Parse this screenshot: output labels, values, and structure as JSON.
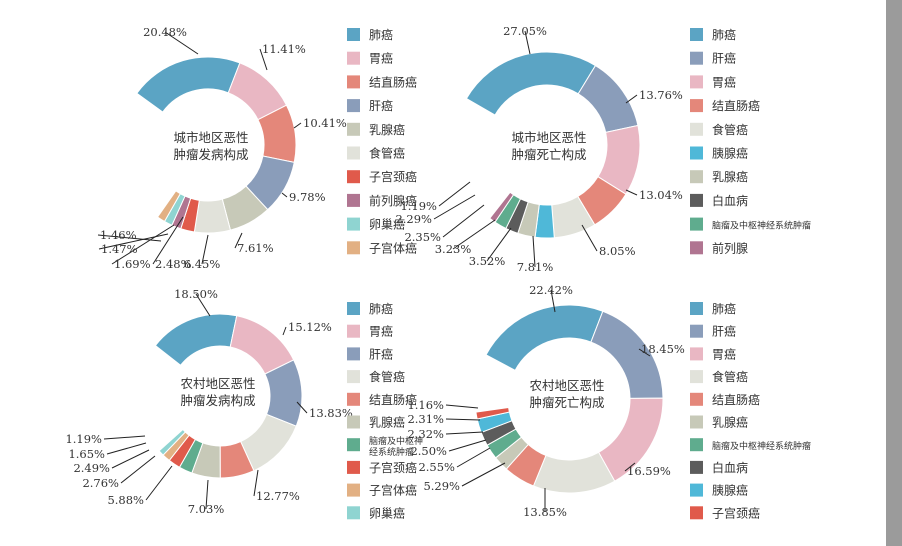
{
  "colors": {
    "lung": "#5ba4c4",
    "stomach": "#e9b7c3",
    "colorectal": "#e4877a",
    "liver": "#8a9dba",
    "breast": "#c7c9b8",
    "esophagus": "#e1e2da",
    "cervix": "#e05a4b",
    "prostate": "#b07591",
    "ovary": "#8fd4d1",
    "uterus": "#e2b083",
    "pancreas": "#4fb8d8",
    "leukemia": "#5c5c5c",
    "brain": "#5fac8e"
  },
  "chart_data": [
    {
      "type": "pie",
      "subtype": "donut",
      "title": "城市地区恶性肿瘤发病构成",
      "title_lines": [
        "城市地区恶性",
        "肿瘤发病构成"
      ],
      "slices": [
        {
          "label": "肺癌",
          "value": 20.48,
          "label_text": "20.48%",
          "color_key": "lung"
        },
        {
          "label": "胃癌",
          "value": 11.41,
          "label_text": "11.41%",
          "color_key": "stomach"
        },
        {
          "label": "结直肠癌",
          "value": 10.41,
          "label_text": "10.41%",
          "color_key": "colorectal"
        },
        {
          "label": "肝癌",
          "value": 9.78,
          "label_text": "9.78%",
          "color_key": "liver"
        },
        {
          "label": "乳腺癌",
          "value": 7.61,
          "label_text": "7.61%",
          "color_key": "breast"
        },
        {
          "label": "食管癌",
          "value": 6.45,
          "label_text": "6.45%",
          "color_key": "esophagus"
        },
        {
          "label": "子宫颈癌",
          "value": 2.48,
          "label_text": "2.48%",
          "color_key": "cervix"
        },
        {
          "label": "前列腺癌",
          "value": 1.69,
          "label_text": "1.69%",
          "color_key": "prostate"
        },
        {
          "label": "卵巢癌",
          "value": 1.47,
          "label_text": "1.47%",
          "color_key": "ovary"
        },
        {
          "label": "子宫体癌",
          "value": 1.46,
          "label_text": "1.46%",
          "color_key": "uterus"
        }
      ],
      "legend": [
        {
          "label": "肺癌",
          "color_key": "lung"
        },
        {
          "label": "胃癌",
          "color_key": "stomach"
        },
        {
          "label": "结直肠癌",
          "color_key": "colorectal"
        },
        {
          "label": "肝癌",
          "color_key": "liver"
        },
        {
          "label": "乳腺癌",
          "color_key": "breast"
        },
        {
          "label": "食管癌",
          "color_key": "esophagus"
        },
        {
          "label": "子宫颈癌",
          "color_key": "cervix"
        },
        {
          "label": "前列腺癌",
          "color_key": "prostate"
        },
        {
          "label": "卵巢癌",
          "color_key": "ovary"
        },
        {
          "label": "子宫体癌",
          "color_key": "uterus"
        }
      ]
    },
    {
      "type": "pie",
      "subtype": "donut",
      "title": "城市地区恶性肿瘤死亡构成",
      "title_lines": [
        "城市地区恶性",
        "肿瘤死亡构成"
      ],
      "slices": [
        {
          "label": "肺癌",
          "value": 27.05,
          "label_text": "27.05%",
          "color_key": "lung"
        },
        {
          "label": "肝癌",
          "value": 13.76,
          "label_text": "13.76%",
          "color_key": "liver"
        },
        {
          "label": "胃癌",
          "value": 13.04,
          "label_text": "13.04%",
          "color_key": "stomach"
        },
        {
          "label": "结直肠癌",
          "value": 8.05,
          "label_text": "8.05%",
          "color_key": "colorectal"
        },
        {
          "label": "食管癌",
          "value": 7.81,
          "label_text": "7.81%",
          "color_key": "esophagus"
        },
        {
          "label": "胰腺癌",
          "value": 3.52,
          "label_text": "3.52%",
          "color_key": "pancreas"
        },
        {
          "label": "乳腺癌",
          "value": 3.23,
          "label_text": "3.23%",
          "color_key": "breast"
        },
        {
          "label": "白血病",
          "value": 2.35,
          "label_text": "2.35%",
          "color_key": "leukemia"
        },
        {
          "label": "脑瘤及中枢神经系统肿瘤",
          "value": 2.29,
          "label_text": "2.29%",
          "color_key": "brain"
        },
        {
          "label": "前列腺",
          "value": 1.19,
          "label_text": "1.19%",
          "color_key": "prostate"
        }
      ],
      "legend": [
        {
          "label": "肺癌",
          "color_key": "lung"
        },
        {
          "label": "肝癌",
          "color_key": "liver"
        },
        {
          "label": "胃癌",
          "color_key": "stomach"
        },
        {
          "label": "结直肠癌",
          "color_key": "colorectal"
        },
        {
          "label": "食管癌",
          "color_key": "esophagus"
        },
        {
          "label": "胰腺癌",
          "color_key": "pancreas"
        },
        {
          "label": "乳腺癌",
          "color_key": "breast"
        },
        {
          "label": "白血病",
          "color_key": "leukemia"
        },
        {
          "label": "脑瘤及中枢神经系统肿瘤",
          "color_key": "brain",
          "small": true
        },
        {
          "label": "前列腺",
          "color_key": "prostate"
        }
      ]
    },
    {
      "type": "pie",
      "subtype": "donut",
      "title": "农村地区恶性肿瘤发病构成",
      "title_lines": [
        "农村地区恶性",
        "肿瘤发病构成"
      ],
      "slices": [
        {
          "label": "肺癌",
          "value": 18.5,
          "label_text": "18.50%",
          "color_key": "lung"
        },
        {
          "label": "胃癌",
          "value": 15.12,
          "label_text": "15.12%",
          "color_key": "stomach"
        },
        {
          "label": "肝癌",
          "value": 13.83,
          "label_text": "13.83%",
          "color_key": "liver"
        },
        {
          "label": "食管癌",
          "value": 12.77,
          "label_text": "12.77%",
          "color_key": "esophagus"
        },
        {
          "label": "结直肠癌",
          "value": 7.03,
          "label_text": "7.03%",
          "color_key": "colorectal"
        },
        {
          "label": "乳腺癌",
          "value": 5.88,
          "label_text": "5.88%",
          "color_key": "breast"
        },
        {
          "label": "脑瘤及中枢神经系统肿瘤",
          "value": 2.76,
          "label_text": "2.76%",
          "color_key": "brain"
        },
        {
          "label": "子宫颈癌",
          "value": 2.49,
          "label_text": "2.49%",
          "color_key": "cervix"
        },
        {
          "label": "子宫体癌",
          "value": 1.65,
          "label_text": "1.65%",
          "color_key": "uterus"
        },
        {
          "label": "卵巢癌",
          "value": 1.19,
          "label_text": "1.19%",
          "color_key": "ovary"
        }
      ],
      "legend": [
        {
          "label": "肺癌",
          "color_key": "lung"
        },
        {
          "label": "胃癌",
          "color_key": "stomach"
        },
        {
          "label": "肝癌",
          "color_key": "liver"
        },
        {
          "label": "食管癌",
          "color_key": "esophagus"
        },
        {
          "label": "结直肠癌",
          "color_key": "colorectal"
        },
        {
          "label": "乳腺癌",
          "color_key": "breast"
        },
        {
          "label": "脑瘤及中枢神经系统肿瘤",
          "label_lines": [
            "脑瘤及中枢神",
            "经系统肿瘤"
          ],
          "color_key": "brain",
          "small": true
        },
        {
          "label": "子宫颈癌",
          "color_key": "cervix"
        },
        {
          "label": "子宫体癌",
          "color_key": "uterus"
        },
        {
          "label": "卵巢癌",
          "color_key": "ovary"
        }
      ]
    },
    {
      "type": "pie",
      "subtype": "donut",
      "title": "农村地区恶性肿瘤死亡构成",
      "title_lines": [
        "农村地区恶性",
        "肿瘤死亡构成"
      ],
      "slices": [
        {
          "label": "肺癌",
          "value": 22.42,
          "label_text": "22.42%",
          "color_key": "lung"
        },
        {
          "label": "肝癌",
          "value": 18.45,
          "label_text": "18.45%",
          "color_key": "liver"
        },
        {
          "label": "胃癌",
          "value": 16.59,
          "label_text": "16.59%",
          "color_key": "stomach"
        },
        {
          "label": "食管癌",
          "value": 13.85,
          "label_text": "13.85%",
          "color_key": "esophagus"
        },
        {
          "label": "结直肠癌",
          "value": 5.29,
          "label_text": "5.29%",
          "color_key": "colorectal"
        },
        {
          "label": "乳腺癌",
          "value": 2.55,
          "label_text": "2.55%",
          "color_key": "breast"
        },
        {
          "label": "脑瘤及中枢神经系统肿瘤",
          "value": 2.5,
          "label_text": "2.50%",
          "color_key": "brain"
        },
        {
          "label": "白血病",
          "value": 2.32,
          "label_text": "2.32%",
          "color_key": "leukemia"
        },
        {
          "label": "胰腺癌",
          "value": 2.31,
          "label_text": "2.31%",
          "color_key": "pancreas"
        },
        {
          "label": "子宫颈癌",
          "value": 1.16,
          "label_text": "1.16%",
          "color_key": "cervix"
        }
      ],
      "legend": [
        {
          "label": "肺癌",
          "color_key": "lung"
        },
        {
          "label": "肝癌",
          "color_key": "liver"
        },
        {
          "label": "胃癌",
          "color_key": "stomach"
        },
        {
          "label": "食管癌",
          "color_key": "esophagus"
        },
        {
          "label": "结直肠癌",
          "color_key": "colorectal"
        },
        {
          "label": "乳腺癌",
          "color_key": "breast"
        },
        {
          "label": "脑瘤及中枢神经系统肿瘤",
          "color_key": "brain",
          "small": true
        },
        {
          "label": "白血病",
          "color_key": "leukemia"
        },
        {
          "label": "胰腺癌",
          "color_key": "pancreas"
        },
        {
          "label": "子宫颈癌",
          "color_key": "cervix"
        }
      ]
    }
  ]
}
